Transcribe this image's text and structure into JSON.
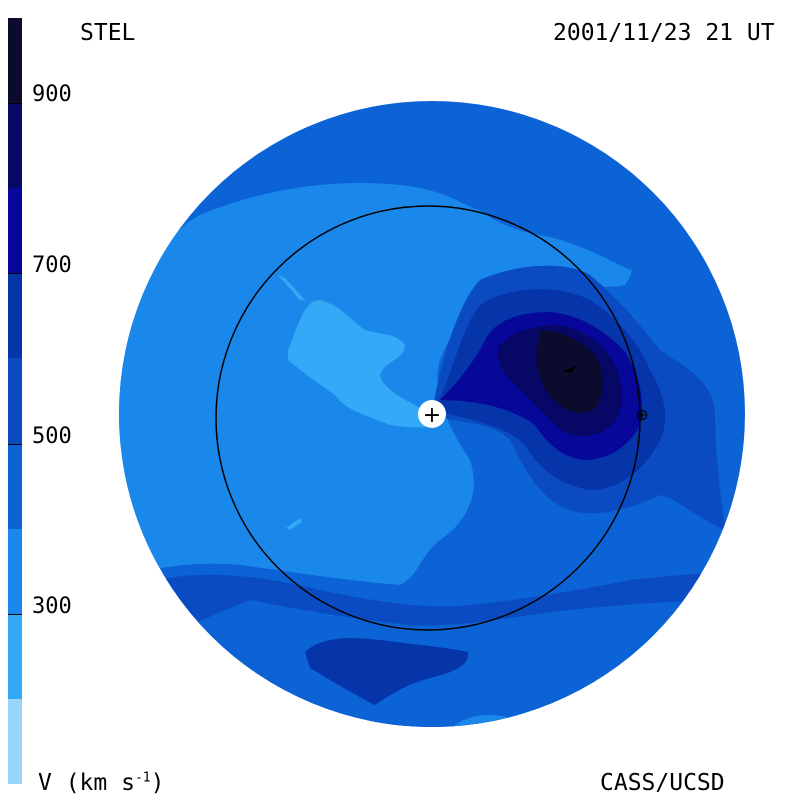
{
  "header": {
    "left_label": "STEL",
    "right_label": "2001/11/23 21 UT"
  },
  "footer": {
    "left_label": "V (km s",
    "left_label_exponent": "-1",
    "left_label_close": ")",
    "right_label": "CASS/UCSD"
  },
  "colorbar": {
    "ticks": [
      "900",
      "700",
      "500",
      "300"
    ],
    "bands": [
      {
        "color": "#0b0b2e",
        "from": 900,
        "to": 1000
      },
      {
        "color": "#070766",
        "from": 800,
        "to": 900
      },
      {
        "color": "#07079a",
        "from": 700,
        "to": 800
      },
      {
        "color": "#0535a8",
        "from": 600,
        "to": 700
      },
      {
        "color": "#0a4bc2",
        "from": 500,
        "to": 600
      },
      {
        "color": "#0b63d6",
        "from": 400,
        "to": 500
      },
      {
        "color": "#1a88ea",
        "from": 300,
        "to": 400
      },
      {
        "color": "#34a9f7",
        "from": 200,
        "to": 300
      },
      {
        "color": "#9ad6fb",
        "from": 100,
        "to": 200
      }
    ]
  },
  "map": {
    "sun_symbol": "+",
    "earth_symbol": "⊕"
  }
}
